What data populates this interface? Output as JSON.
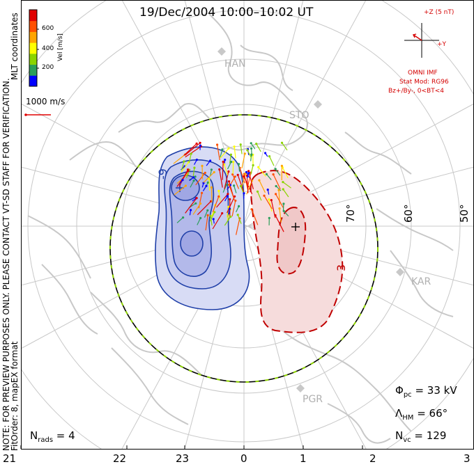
{
  "header": {
    "title": "19/Dec/2004 10:00–10:02 UT"
  },
  "left_notes": {
    "note": "NOTE: FOR PREVIEW PURPOSES ONLY. PLEASE CONTACT VT-SD STAFF FOR VERIFICATION.",
    "fit": "FitOrder: 8, mapEX format",
    "coords": "MLT coordinates"
  },
  "colorbar": {
    "label": "Vel [m/s]",
    "ticks": [
      "600",
      "400",
      "200"
    ],
    "colors": [
      "#0000ff",
      "#2b9e5a",
      "#8bd400",
      "#ffff00",
      "#ffa500",
      "#ff5000",
      "#e00000"
    ]
  },
  "vector_scale": {
    "label": "1000 m/s"
  },
  "imf": {
    "bz_label": "+Z (5 nT)",
    "by_label": "+Y",
    "model_lines": [
      "OMNI IMF",
      "Stat Mod: RG96",
      "Bz+/By-, 0<BT<4"
    ]
  },
  "stations": [
    "HAN",
    "STO",
    "KAR",
    "PGR"
  ],
  "latitudes": [
    "70°",
    "60°",
    "50°"
  ],
  "contour_labels": {
    "neg": "-9",
    "pos": "3"
  },
  "stats": {
    "phi_sym": "Φ",
    "phi_sub": "pc",
    "phi_val": " = 33 kV",
    "lam_sym": "Λ",
    "lam_sub": "HM",
    "lam_val": " = 66°",
    "nvc_sym": "N",
    "nvc_sub": "vc",
    "nvc_val": " = 129",
    "nrads_sym": "N",
    "nrads_sub": "rads",
    "nrads_val": " = 4"
  },
  "mlt_ticks": [
    "21",
    "22",
    "23",
    "0",
    "1",
    "2",
    "3"
  ]
}
